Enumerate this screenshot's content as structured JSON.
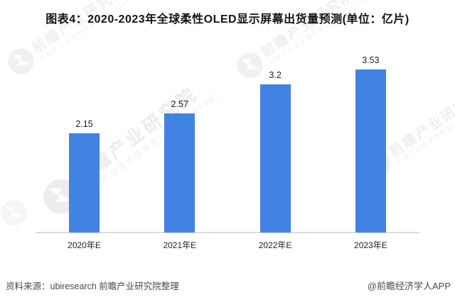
{
  "title": "图表4：2020-2023年全球柔性OLED显示屏幕出货量预测(单位：亿片)",
  "chart_data": {
    "type": "bar",
    "categories": [
      "2020年E",
      "2021年E",
      "2022年E",
      "2023年E"
    ],
    "values": [
      2.15,
      2.57,
      3.2,
      3.53
    ],
    "value_labels": [
      "2.15",
      "2.57",
      "3.2",
      "3.53"
    ],
    "title": "图表4：2020-2023年全球柔性OLED显示屏幕出货量预测(单位：亿片)",
    "xlabel": "",
    "ylabel": "",
    "ylim": [
      0,
      3.9
    ],
    "grid": false,
    "legend": false,
    "bar_color": "#4183E2",
    "axis_line_color": "#dcdcdc",
    "label_color": "#1f1f1f"
  },
  "footer": {
    "source": "资料来源：ubiresearch 前瞻产业研究院整理",
    "credit": "@前瞻经济学人APP"
  },
  "watermark": {
    "logo": "qianzhan-eye-logo",
    "brand_large": "前瞻产业研究院",
    "brand_small": "中国产业咨询领导者(股票:839599)"
  }
}
